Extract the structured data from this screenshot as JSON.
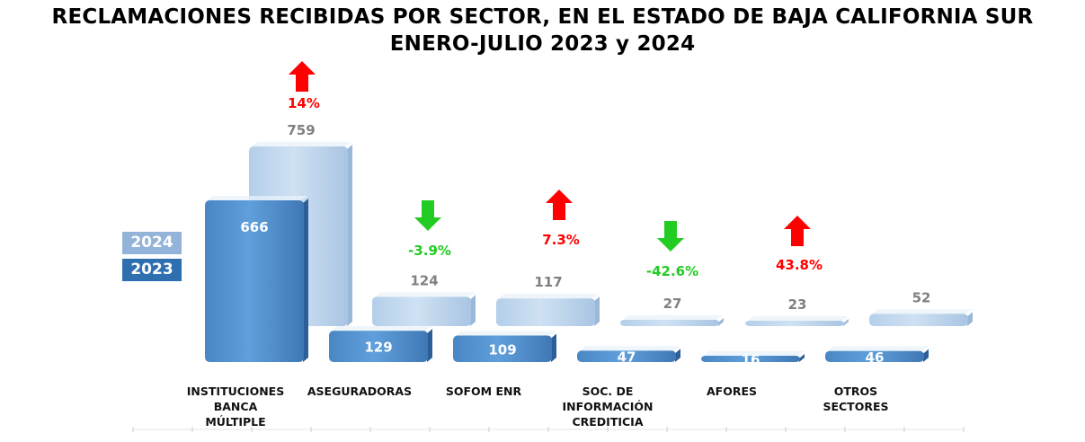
{
  "chart_data": {
    "type": "bar",
    "title": "RECLAMACIONES RECIBIDAS POR SECTOR, EN EL ESTADO DE BAJA CALIFORNIA SUR",
    "subtitle": "ENERO-JULIO 2023 y 2024",
    "categories": [
      [
        "INSTITUCIONES",
        "BANCA",
        "MÚLTIPLE"
      ],
      [
        "ASEGURADORAS"
      ],
      [
        "SOFOM ENR"
      ],
      [
        "SOC. DE",
        "INFORMACIÓN",
        "CREDITICIA"
      ],
      [
        "AFORES"
      ],
      [
        "OTROS",
        "SECTORES"
      ]
    ],
    "series": [
      {
        "name": "2023",
        "values": [
          666,
          129,
          109,
          47,
          16,
          46
        ],
        "color": "#5b9bd5"
      },
      {
        "name": "2024",
        "values": [
          759,
          124,
          117,
          27,
          23,
          52
        ],
        "color": "#bdd7ee"
      }
    ],
    "changes": [
      {
        "label": "14%",
        "direction": "up",
        "color": "#ff0000"
      },
      {
        "label": "-3.9%",
        "direction": "down",
        "color": "#22cc22"
      },
      {
        "label": "7.3%",
        "direction": "up",
        "color": "#ff0000"
      },
      {
        "label": "-42.6%",
        "direction": "down",
        "color": "#22cc22"
      },
      {
        "label": "43.8%",
        "direction": "up",
        "color": "#ff0000"
      },
      null
    ],
    "legend_position": "left"
  }
}
